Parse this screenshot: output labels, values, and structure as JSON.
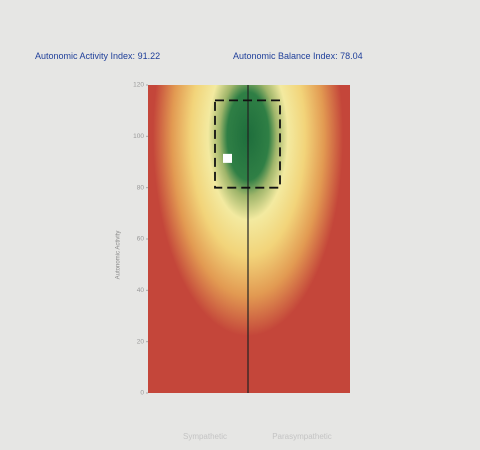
{
  "chart_data": {
    "type": "heatmap",
    "indices": [
      {
        "label": "Autonomic Activity Index:",
        "value": 91.22
      },
      {
        "label": "Autonomic Balance Index:",
        "value": 78.04
      }
    ],
    "ylabel": "Autonomic Activity",
    "xlabels": [
      "Sympathetic",
      "Parasympathetic"
    ],
    "ylim": [
      0,
      120
    ],
    "yticks": [
      0,
      20,
      40,
      60,
      80,
      100,
      120
    ],
    "target_zone": [
      80,
      114
    ],
    "point_color": "#ffffff"
  }
}
